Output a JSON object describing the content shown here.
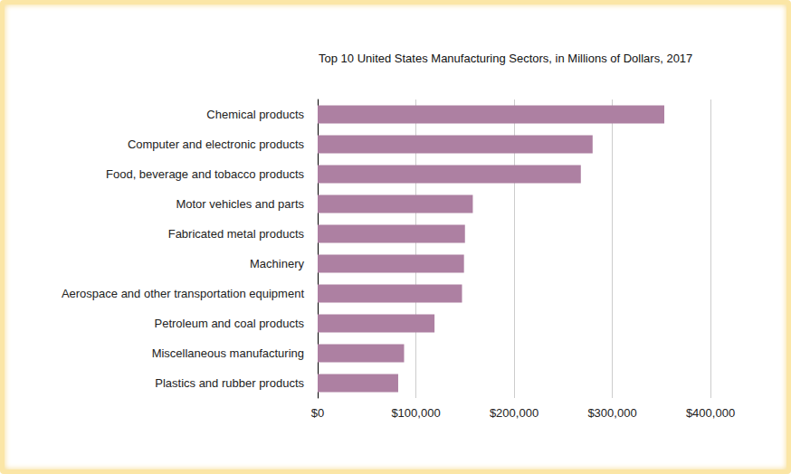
{
  "chart_data": {
    "type": "bar",
    "orientation": "horizontal",
    "title": "Top 10 United States Manufacturing Sectors, in Millions of Dollars, 2017",
    "categories": [
      "Chemical products",
      "Computer and electronic products",
      "Food, beverage and tobacco products",
      "Motor vehicles and parts",
      "Fabricated metal products",
      "Machinery",
      "Aerospace and other transportation equipment",
      "Petroleum and coal products",
      "Miscellaneous manufacturing",
      "Plastics and rubber products"
    ],
    "values": [
      353000,
      280000,
      268000,
      158000,
      150000,
      149000,
      147000,
      119000,
      88000,
      82000
    ],
    "color": "#ad80a2",
    "xlim": [
      0,
      400000
    ],
    "xticks": [
      {
        "value": 0,
        "label": "$0"
      },
      {
        "value": 100000,
        "label": "$100,000"
      },
      {
        "value": 200000,
        "label": "$200,000"
      },
      {
        "value": 300000,
        "label": "$300,000"
      },
      {
        "value": 400000,
        "label": "$400,000"
      }
    ],
    "grid": true
  }
}
